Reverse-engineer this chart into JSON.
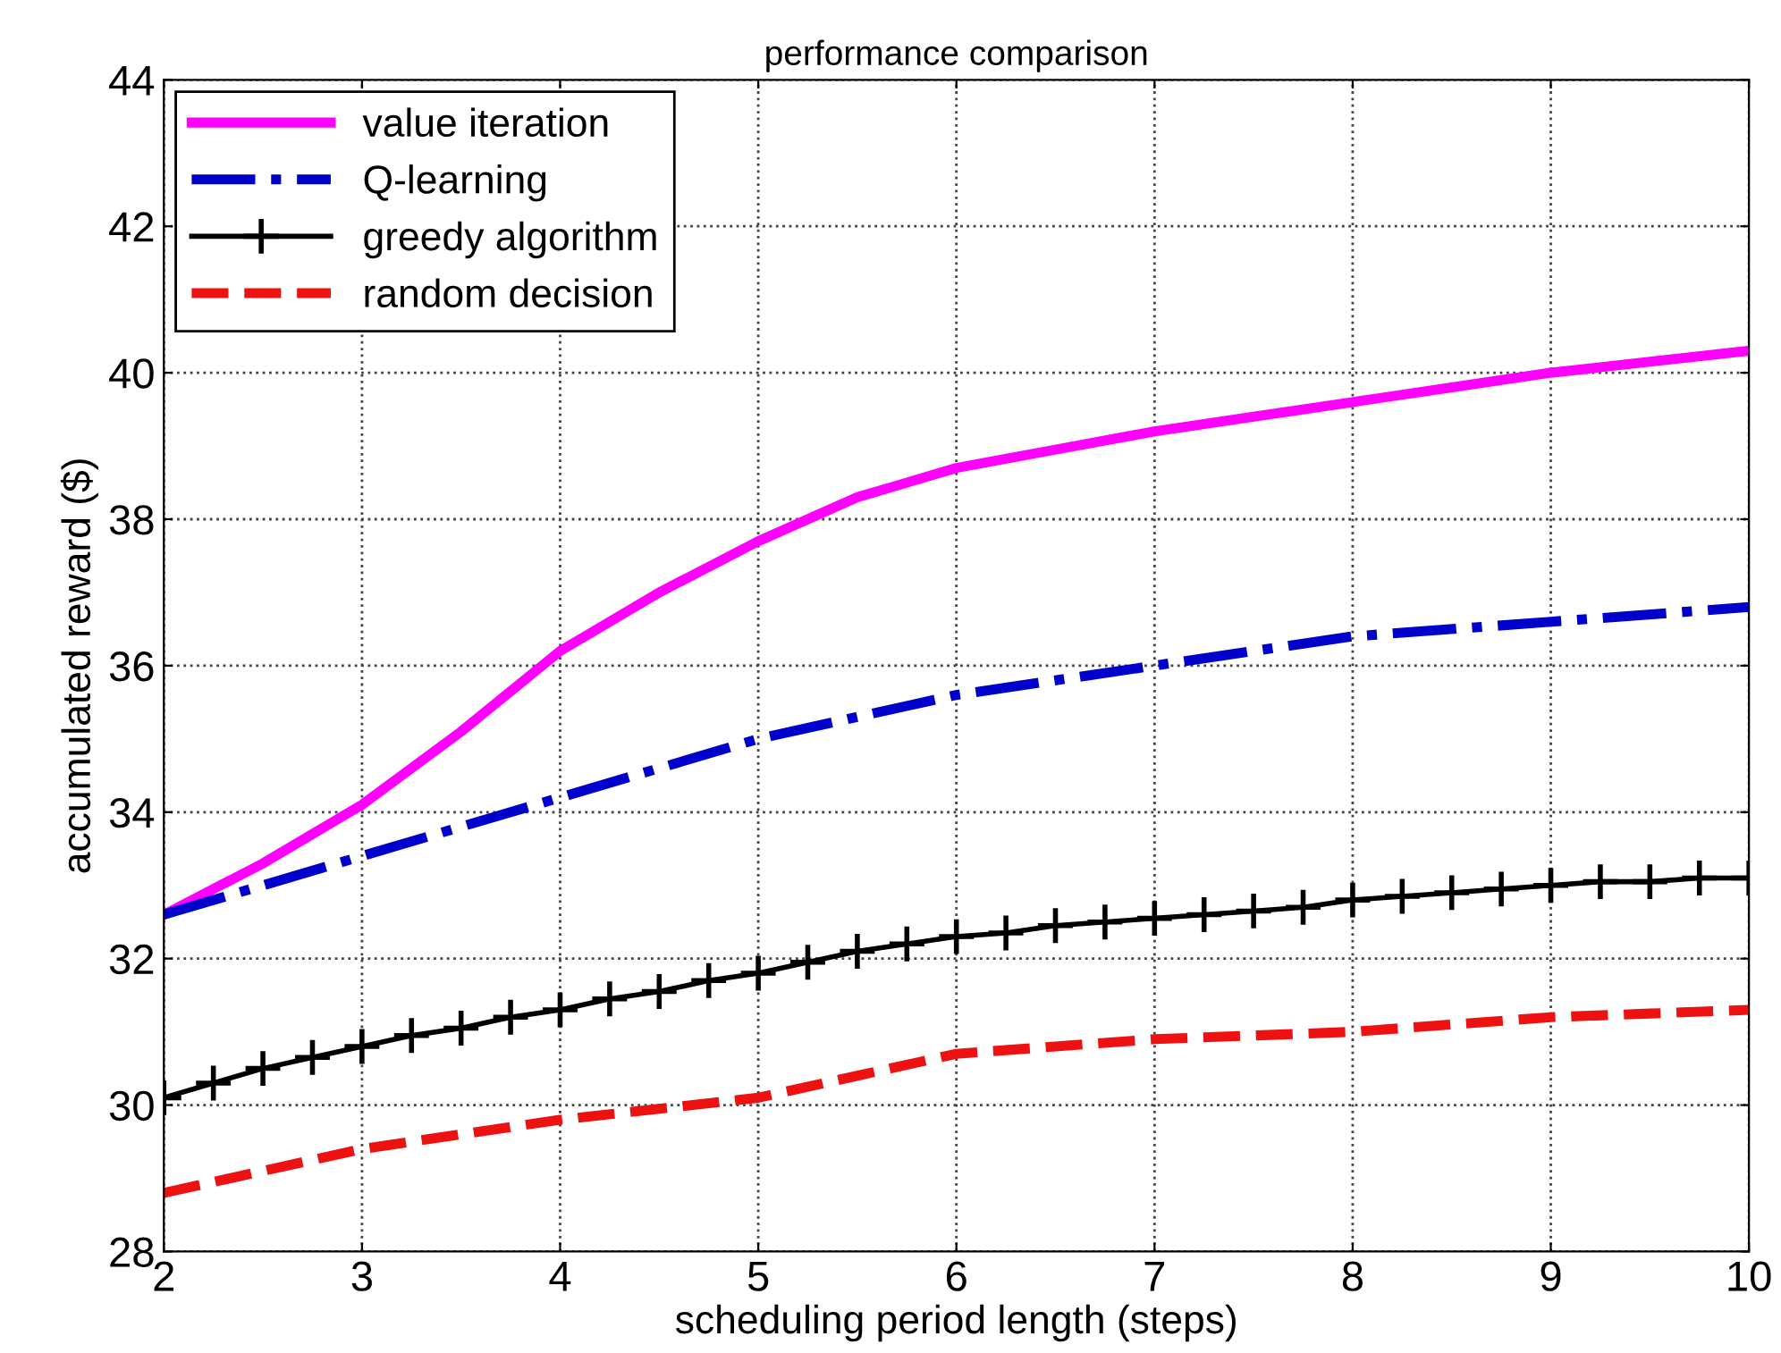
{
  "chart_data": {
    "type": "line",
    "title": "performance comparison",
    "xlabel": "scheduling period length (steps)",
    "ylabel": "accumulated reward ($)",
    "xlim": [
      2,
      10
    ],
    "ylim": [
      28,
      44
    ],
    "xticks": [
      2,
      3,
      4,
      5,
      6,
      7,
      8,
      9,
      10
    ],
    "yticks": [
      28,
      30,
      32,
      34,
      36,
      38,
      40,
      42,
      44
    ],
    "grid": true,
    "legend": "top left",
    "series": [
      {
        "name": "value iteration",
        "color": "#ff00ff",
        "line_style": "solid",
        "marker": "none",
        "x": [
          2,
          2.5,
          3,
          3.5,
          4,
          4.5,
          5,
          5.5,
          6,
          6.5,
          7,
          7.5,
          8,
          8.5,
          9,
          9.5,
          10
        ],
        "values": [
          32.6,
          33.3,
          34.1,
          35.1,
          36.2,
          37.0,
          37.7,
          38.3,
          38.7,
          38.95,
          39.2,
          39.4,
          39.6,
          39.8,
          40.0,
          40.15,
          40.3
        ]
      },
      {
        "name": "Q-learning",
        "color": "#0000cc",
        "line_style": "dashdot",
        "marker": "none",
        "x": [
          2,
          3,
          4,
          5,
          6,
          7,
          8,
          9,
          10
        ],
        "values": [
          32.6,
          33.4,
          34.2,
          35.0,
          35.6,
          36.0,
          36.4,
          36.6,
          36.8
        ]
      },
      {
        "name": "greedy algorithm",
        "color": "#000000",
        "line_style": "solid",
        "marker": "cross",
        "x": [
          2,
          2.25,
          2.5,
          2.75,
          3,
          3.25,
          3.5,
          3.75,
          4,
          4.25,
          4.5,
          4.75,
          5,
          5.25,
          5.5,
          5.75,
          6,
          6.25,
          6.5,
          6.75,
          7,
          7.25,
          7.5,
          7.75,
          8,
          8.25,
          8.5,
          8.75,
          9,
          9.25,
          9.5,
          9.75,
          10
        ],
        "values": [
          30.1,
          30.3,
          30.5,
          30.65,
          30.8,
          30.95,
          31.05,
          31.2,
          31.3,
          31.45,
          31.55,
          31.7,
          31.8,
          31.95,
          32.1,
          32.2,
          32.3,
          32.35,
          32.45,
          32.5,
          32.55,
          32.6,
          32.65,
          32.7,
          32.8,
          32.85,
          32.9,
          32.95,
          33.0,
          33.05,
          33.05,
          33.1,
          33.1
        ]
      },
      {
        "name": "random decision",
        "color": "#ee1111",
        "line_style": "dashed",
        "marker": "none",
        "x": [
          2,
          2.5,
          3,
          3.5,
          4,
          4.5,
          5,
          5.5,
          6,
          6.5,
          7,
          7.5,
          8,
          8.5,
          9,
          9.5,
          10
        ],
        "values": [
          28.8,
          29.1,
          29.4,
          29.6,
          29.8,
          29.95,
          30.1,
          30.4,
          30.7,
          30.8,
          30.9,
          30.95,
          31.0,
          31.1,
          31.2,
          31.25,
          31.3
        ]
      }
    ]
  }
}
